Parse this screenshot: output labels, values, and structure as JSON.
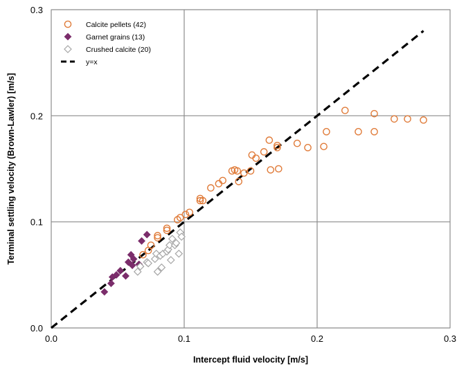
{
  "chart_data": {
    "type": "scatter",
    "xlabel": "Intercept fluid velocity [m/s]",
    "ylabel": "Terminal settling velocity (Brown-Lawler) [m/s]",
    "xlim": [
      0,
      0.3
    ],
    "ylim": [
      0,
      0.3
    ],
    "x_ticks": [
      "0.0",
      "0.1",
      "0.2",
      "0.3"
    ],
    "y_ticks": [
      "0.0",
      "0.1",
      "0.2",
      "0.3"
    ],
    "grid": true,
    "legend_position": "top-left",
    "series": [
      {
        "name": "Calcite pellets (42)",
        "marker": "open-circle",
        "color": "#E07B39",
        "points": [
          [
            0.069,
            0.069
          ],
          [
            0.073,
            0.073
          ],
          [
            0.075,
            0.078
          ],
          [
            0.08,
            0.085
          ],
          [
            0.08,
            0.087
          ],
          [
            0.087,
            0.092
          ],
          [
            0.087,
            0.094
          ],
          [
            0.095,
            0.102
          ],
          [
            0.097,
            0.104
          ],
          [
            0.101,
            0.107
          ],
          [
            0.104,
            0.109
          ],
          [
            0.112,
            0.12
          ],
          [
            0.112,
            0.122
          ],
          [
            0.114,
            0.12
          ],
          [
            0.12,
            0.132
          ],
          [
            0.126,
            0.136
          ],
          [
            0.129,
            0.139
          ],
          [
            0.136,
            0.148
          ],
          [
            0.138,
            0.149
          ],
          [
            0.14,
            0.148
          ],
          [
            0.141,
            0.138
          ],
          [
            0.145,
            0.146
          ],
          [
            0.15,
            0.148
          ],
          [
            0.151,
            0.163
          ],
          [
            0.154,
            0.16
          ],
          [
            0.16,
            0.166
          ],
          [
            0.164,
            0.177
          ],
          [
            0.165,
            0.149
          ],
          [
            0.17,
            0.17
          ],
          [
            0.171,
            0.15
          ],
          [
            0.185,
            0.174
          ],
          [
            0.193,
            0.17
          ],
          [
            0.205,
            0.171
          ],
          [
            0.207,
            0.185
          ],
          [
            0.221,
            0.205
          ],
          [
            0.231,
            0.185
          ],
          [
            0.243,
            0.202
          ],
          [
            0.243,
            0.185
          ],
          [
            0.258,
            0.197
          ],
          [
            0.268,
            0.197
          ],
          [
            0.28,
            0.196
          ],
          [
            0.17,
            0.172
          ]
        ]
      },
      {
        "name": "Garnet grains (13)",
        "marker": "filled-diamond",
        "color": "#7B2D6B",
        "points": [
          [
            0.04,
            0.034
          ],
          [
            0.045,
            0.042
          ],
          [
            0.046,
            0.048
          ],
          [
            0.049,
            0.05
          ],
          [
            0.052,
            0.054
          ],
          [
            0.056,
            0.049
          ],
          [
            0.058,
            0.062
          ],
          [
            0.06,
            0.069
          ],
          [
            0.061,
            0.059
          ],
          [
            0.062,
            0.065
          ],
          [
            0.066,
            0.06
          ],
          [
            0.068,
            0.082
          ],
          [
            0.072,
            0.088
          ]
        ]
      },
      {
        "name": "Crushed calcite (20)",
        "marker": "open-diamond",
        "color": "#A6A6A6",
        "points": [
          [
            0.065,
            0.053
          ],
          [
            0.067,
            0.058
          ],
          [
            0.072,
            0.062
          ],
          [
            0.073,
            0.061
          ],
          [
            0.078,
            0.065
          ],
          [
            0.079,
            0.07
          ],
          [
            0.08,
            0.053
          ],
          [
            0.082,
            0.068
          ],
          [
            0.083,
            0.057
          ],
          [
            0.084,
            0.07
          ],
          [
            0.087,
            0.072
          ],
          [
            0.088,
            0.074
          ],
          [
            0.089,
            0.078
          ],
          [
            0.09,
            0.064
          ],
          [
            0.091,
            0.084
          ],
          [
            0.093,
            0.078
          ],
          [
            0.094,
            0.08
          ],
          [
            0.096,
            0.07
          ],
          [
            0.097,
            0.09
          ],
          [
            0.098,
            0.086
          ]
        ]
      },
      {
        "name": "y=x",
        "marker": "dashed-line",
        "color": "#000000",
        "points": [
          [
            0.0,
            0.0
          ],
          [
            0.28,
            0.28
          ]
        ]
      }
    ]
  }
}
